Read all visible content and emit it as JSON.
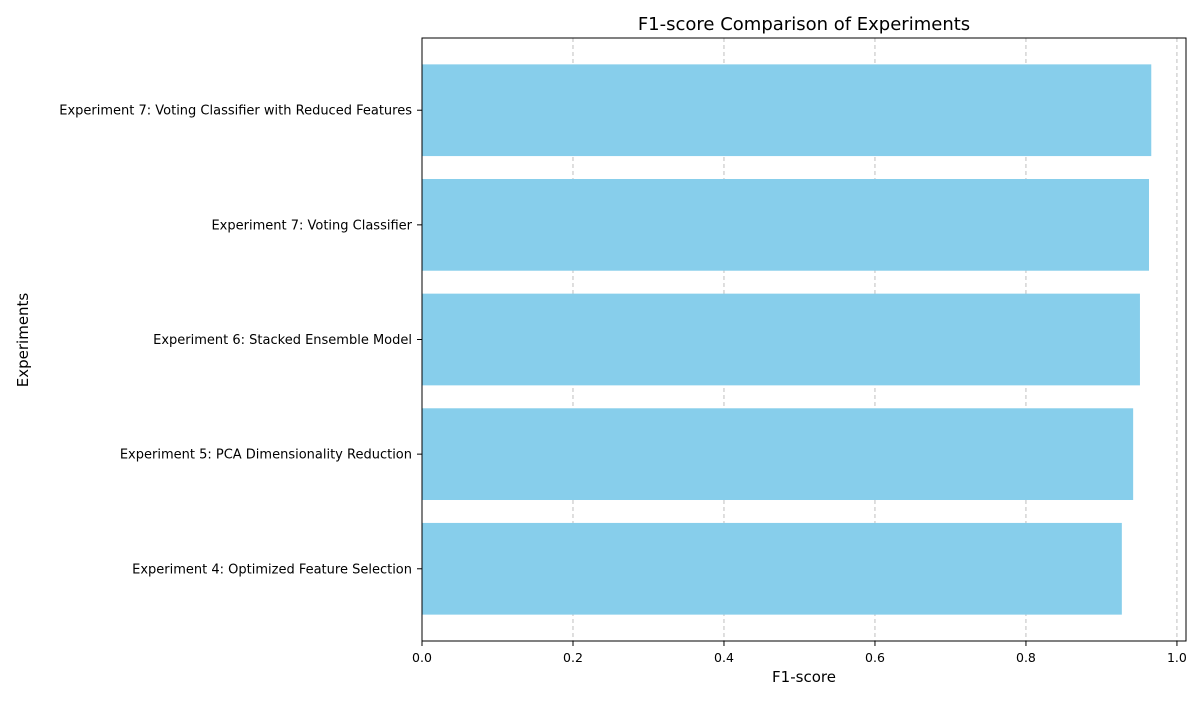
{
  "chart_data": {
    "type": "bar",
    "orientation": "horizontal",
    "title": "F1-score Comparison of Experiments",
    "xlabel": "F1-score",
    "ylabel": "Experiments",
    "categories": [
      "Experiment 4: Optimized Feature Selection",
      "Experiment 5: PCA Dimensionality Reduction",
      "Experiment 6: Stacked Ensemble Model",
      "Experiment 7: Voting Classifier",
      "Experiment 7: Voting Classifier with Reduced Features"
    ],
    "values": [
      0.927,
      0.942,
      0.951,
      0.963,
      0.966
    ],
    "xlim": [
      0,
      1.012
    ],
    "xticks": [
      "0.0",
      "0.2",
      "0.4",
      "0.6",
      "0.8",
      "1.0"
    ],
    "grid": "x, dashed",
    "bar_color": "#87CEEB",
    "grid_color": "#b0b0b0"
  }
}
